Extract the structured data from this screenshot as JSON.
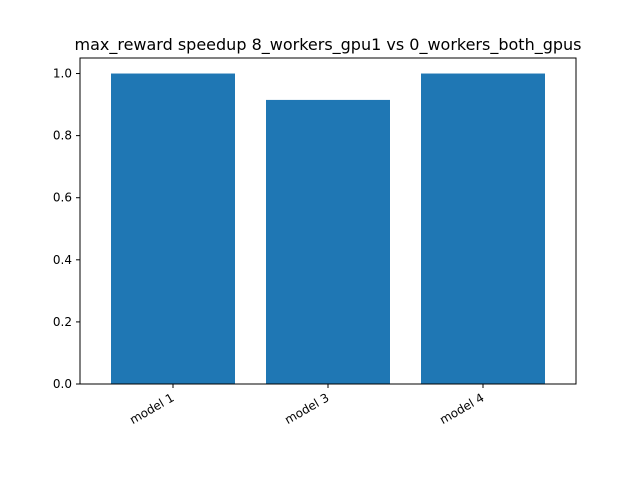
{
  "chart_data": {
    "type": "bar",
    "title": "max_reward speedup 8_workers_gpu1 vs 0_workers_both_gpus",
    "xlabel": "",
    "ylabel": "",
    "categories": [
      "model 1",
      "model 3",
      "model 4"
    ],
    "values": [
      1.0,
      0.915,
      1.0
    ],
    "ylim": [
      0,
      1.05
    ],
    "yticks": [
      0.0,
      0.2,
      0.4,
      0.6,
      0.8,
      1.0
    ],
    "ytick_labels": [
      "0.0",
      "0.2",
      "0.4",
      "0.6",
      "0.8",
      "1.0"
    ],
    "bar_color": "#1f77b4",
    "grid": false,
    "legend": "none"
  }
}
